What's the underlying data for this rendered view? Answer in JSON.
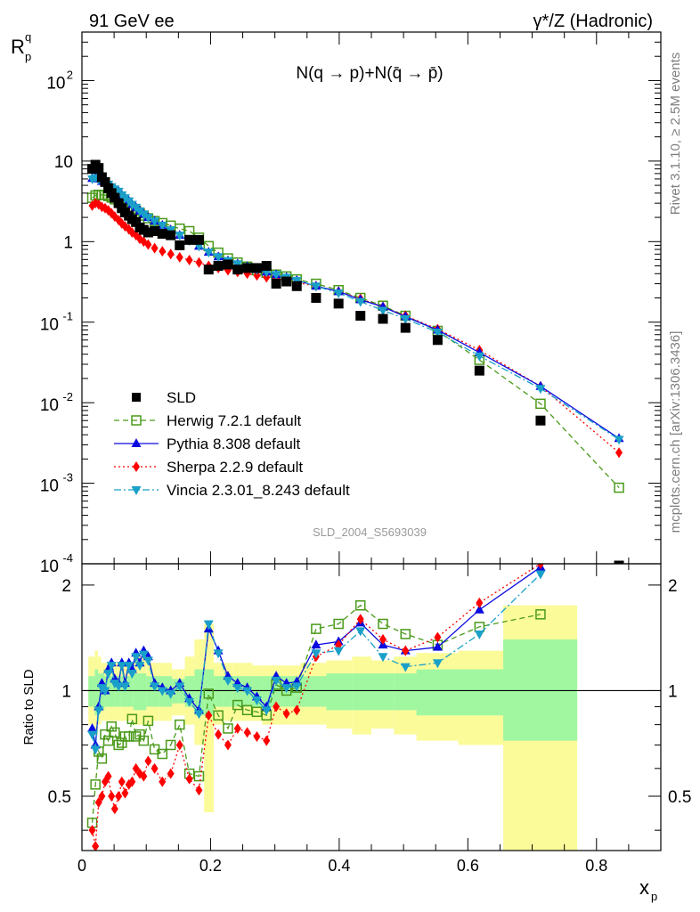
{
  "header": {
    "left": "91 GeV ee",
    "right": "γ*/Z (Hadronic)"
  },
  "side": {
    "rivet": "Rivet 3.1.10, ≥ 2.5M events",
    "mcplots": "mcplots.cern.ch [arXiv:1306.3436]"
  },
  "chart_data": {
    "type": "scatter",
    "title": "N(q → p)+N(q̄ → p̄)",
    "analysis_label": "SLD_2004_S5693039",
    "ylabel": "R_p^q",
    "ylabel_main": "R",
    "ylabel_sub": "p",
    "ylabel_sup": "q",
    "xlabel": "x_p",
    "xlabel_main": "x",
    "xlabel_sub": "p",
    "ratio_ylabel": "Ratio to SLD",
    "xlim": [
      0,
      0.9
    ],
    "ylim": [
      0.0001,
      400
    ],
    "yscale": "log",
    "ratio_ylim": [
      0.35,
      2.3
    ],
    "x_ticks": [
      "0",
      "0.2",
      "0.4",
      "0.6",
      "0.8"
    ],
    "y_ticks": [
      "10^-4",
      "10^-3",
      "10^-2",
      "10^-1",
      "1",
      "10",
      "10^2"
    ],
    "ratio_ticks": [
      "0.5",
      "1",
      "2"
    ],
    "legend_position": "lower-left",
    "colors": {
      "data": "#000000",
      "herwig": "#4a9a1a",
      "pythia": "#0a0ae0",
      "sherpa": "#ff0000",
      "vincia": "#1aa0c8",
      "band_inner": "#a0f7a0",
      "band_outer": "#fbfb9a"
    },
    "x": [
      0.016,
      0.021,
      0.026,
      0.031,
      0.036,
      0.041,
      0.046,
      0.051,
      0.057,
      0.062,
      0.067,
      0.073,
      0.078,
      0.084,
      0.09,
      0.096,
      0.103,
      0.113,
      0.125,
      0.138,
      0.152,
      0.167,
      0.182,
      0.197,
      0.212,
      0.227,
      0.242,
      0.257,
      0.272,
      0.287,
      0.302,
      0.318,
      0.334,
      0.364,
      0.399,
      0.433,
      0.468,
      0.503,
      0.553,
      0.618,
      0.713,
      0.835
    ],
    "series": [
      {
        "name": "SLD",
        "marker": "square",
        "values": [
          8.0,
          9.0,
          8.2,
          6.3,
          5.5,
          4.6,
          4.0,
          3.5,
          3.0,
          2.6,
          2.3,
          2.1,
          1.9,
          1.75,
          1.5,
          1.4,
          1.3,
          1.35,
          1.25,
          1.2,
          0.9,
          1.05,
          1.05,
          0.45,
          0.5,
          0.52,
          0.45,
          0.47,
          0.47,
          0.5,
          0.3,
          0.32,
          0.28,
          0.2,
          0.17,
          0.12,
          0.11,
          0.085,
          0.06,
          0.025,
          0.006,
          9.5e-05
        ]
      },
      {
        "name": "Herwig 7.2.1 default",
        "marker": "open-square",
        "dash": "dashed",
        "values": [
          3.5,
          3.75,
          3.82,
          3.8,
          3.78,
          3.68,
          3.52,
          3.35,
          3.2,
          3.0,
          2.85,
          2.7,
          2.55,
          2.42,
          2.25,
          2.1,
          1.95,
          1.8,
          1.7,
          1.58,
          1.45,
          1.35,
          1.12,
          0.88,
          0.73,
          0.62,
          0.55,
          0.49,
          0.44,
          0.41,
          0.39,
          0.37,
          0.34,
          0.3,
          0.25,
          0.2,
          0.16,
          0.12,
          0.078,
          0.034,
          0.0097,
          0.00088
        ]
      },
      {
        "name": "Pythia 8.308 default",
        "marker": "triangle-up",
        "dash": "solid",
        "values": [
          6.1,
          6.3,
          6.0,
          5.6,
          5.4,
          5.15,
          4.8,
          4.5,
          4.2,
          3.8,
          3.5,
          3.2,
          2.9,
          2.66,
          2.4,
          2.2,
          2.0,
          1.8,
          1.6,
          1.4,
          1.2,
          1.03,
          0.88,
          0.74,
          0.65,
          0.58,
          0.53,
          0.49,
          0.45,
          0.42,
          0.39,
          0.36,
          0.33,
          0.28,
          0.24,
          0.19,
          0.155,
          0.117,
          0.08,
          0.042,
          0.016,
          0.0036
        ]
      },
      {
        "name": "Sherpa 2.2.9 default",
        "marker": "diamond",
        "dash": "dotted",
        "values": [
          2.8,
          3.0,
          2.9,
          2.7,
          2.6,
          2.45,
          2.25,
          2.05,
          1.85,
          1.68,
          1.55,
          1.42,
          1.3,
          1.2,
          1.08,
          1.0,
          0.92,
          0.83,
          0.76,
          0.7,
          0.64,
          0.59,
          0.55,
          0.5,
          0.47,
          0.44,
          0.42,
          0.4,
          0.38,
          0.36,
          0.35,
          0.33,
          0.31,
          0.28,
          0.24,
          0.195,
          0.155,
          0.12,
          0.082,
          0.045,
          0.016,
          0.0024
        ]
      },
      {
        "name": "Vincia 2.3.01_8.243 default",
        "marker": "triangle-down",
        "dash": "dashdot",
        "values": [
          6.0,
          6.2,
          5.9,
          5.6,
          5.4,
          5.15,
          4.8,
          4.5,
          4.2,
          3.8,
          3.5,
          3.2,
          2.9,
          2.66,
          2.4,
          2.2,
          2.0,
          1.8,
          1.6,
          1.4,
          1.2,
          1.03,
          0.88,
          0.74,
          0.65,
          0.58,
          0.53,
          0.49,
          0.45,
          0.42,
          0.39,
          0.36,
          0.33,
          0.28,
          0.23,
          0.18,
          0.14,
          0.11,
          0.075,
          0.038,
          0.015,
          0.0035
        ]
      }
    ],
    "ratio": {
      "x": [
        0.016,
        0.021,
        0.026,
        0.031,
        0.036,
        0.041,
        0.046,
        0.051,
        0.057,
        0.062,
        0.067,
        0.073,
        0.078,
        0.084,
        0.09,
        0.096,
        0.103,
        0.113,
        0.125,
        0.138,
        0.152,
        0.167,
        0.182,
        0.197,
        0.212,
        0.227,
        0.242,
        0.257,
        0.272,
        0.287,
        0.302,
        0.318,
        0.334,
        0.364,
        0.399,
        0.433,
        0.468,
        0.503,
        0.553,
        0.618,
        0.713
      ],
      "series": [
        {
          "name": "Herwig 7.2.1 default",
          "values": [
            0.42,
            0.54,
            0.67,
            0.64,
            0.75,
            0.72,
            0.79,
            0.76,
            0.7,
            0.71,
            0.74,
            0.74,
            0.83,
            0.74,
            0.75,
            0.72,
            0.82,
            0.68,
            0.66,
            0.7,
            0.8,
            0.58,
            0.57,
            0.98,
            0.85,
            0.78,
            0.91,
            0.88,
            0.87,
            0.85,
            1.04,
            1.0,
            1.02,
            1.5,
            1.55,
            1.75,
            1.55,
            1.45,
            1.35,
            1.52,
            1.65
          ]
        },
        {
          "name": "Pythia 8.308 default",
          "values": [
            0.78,
            0.7,
            0.9,
            1.05,
            1.0,
            1.15,
            1.2,
            1.08,
            1.05,
            1.2,
            1.05,
            1.2,
            1.15,
            1.28,
            1.2,
            1.3,
            1.25,
            1.05,
            1.02,
            1.0,
            1.05,
            0.95,
            0.88,
            1.5,
            1.3,
            1.1,
            1.05,
            1.02,
            0.96,
            0.9,
            1.1,
            1.05,
            1.06,
            1.35,
            1.38,
            1.56,
            1.35,
            1.3,
            1.33,
            1.7,
            2.25
          ]
        },
        {
          "name": "Sherpa 2.2.9 default",
          "values": [
            0.4,
            0.36,
            0.48,
            0.5,
            0.55,
            0.57,
            0.5,
            0.46,
            0.5,
            0.55,
            0.51,
            0.54,
            0.55,
            0.6,
            0.58,
            0.57,
            0.63,
            0.6,
            0.55,
            0.58,
            0.7,
            0.56,
            0.52,
            0.85,
            0.75,
            0.7,
            0.78,
            0.76,
            0.74,
            0.72,
            0.9,
            0.86,
            0.88,
            1.25,
            1.35,
            1.6,
            1.4,
            1.3,
            1.42,
            1.78,
            2.3
          ]
        },
        {
          "name": "Vincia 2.3.01_8.243 default",
          "values": [
            0.75,
            0.68,
            0.88,
            1.02,
            1.0,
            1.12,
            1.18,
            1.05,
            1.03,
            1.18,
            1.03,
            1.18,
            1.12,
            1.25,
            1.18,
            1.27,
            1.22,
            1.03,
            1.0,
            0.98,
            1.03,
            0.93,
            0.86,
            1.55,
            1.28,
            1.07,
            1.02,
            1.0,
            0.94,
            0.88,
            1.07,
            1.02,
            1.03,
            1.28,
            1.3,
            1.48,
            1.25,
            1.17,
            1.2,
            1.45,
            2.15
          ]
        }
      ],
      "band_edges": [
        0.01,
        0.02,
        0.025,
        0.03,
        0.035,
        0.04,
        0.045,
        0.05,
        0.06,
        0.07,
        0.08,
        0.09,
        0.1,
        0.11,
        0.12,
        0.13,
        0.14,
        0.15,
        0.16,
        0.175,
        0.19,
        0.205,
        0.22,
        0.235,
        0.25,
        0.265,
        0.28,
        0.295,
        0.31,
        0.325,
        0.34,
        0.38,
        0.42,
        0.45,
        0.485,
        0.52,
        0.585,
        0.655,
        0.77
      ],
      "inner_lo": [
        0.9,
        0.85,
        0.88,
        0.88,
        0.9,
        0.9,
        0.9,
        0.9,
        0.9,
        0.9,
        0.88,
        0.88,
        0.9,
        0.9,
        0.9,
        0.9,
        0.92,
        0.92,
        0.9,
        0.85,
        0.85,
        0.9,
        0.9,
        0.9,
        0.9,
        0.9,
        0.9,
        0.9,
        0.9,
        0.9,
        0.9,
        0.88,
        0.88,
        0.88,
        0.88,
        0.85,
        0.85,
        0.72
      ],
      "inner_hi": [
        1.1,
        1.15,
        1.12,
        1.12,
        1.1,
        1.1,
        1.1,
        1.1,
        1.1,
        1.1,
        1.12,
        1.12,
        1.1,
        1.1,
        1.1,
        1.1,
        1.08,
        1.08,
        1.1,
        1.15,
        1.15,
        1.1,
        1.1,
        1.1,
        1.1,
        1.1,
        1.1,
        1.1,
        1.1,
        1.1,
        1.1,
        1.12,
        1.12,
        1.12,
        1.12,
        1.15,
        1.15,
        1.4
      ],
      "outer_lo": [
        0.8,
        0.75,
        0.8,
        0.82,
        0.82,
        0.82,
        0.82,
        0.82,
        0.82,
        0.82,
        0.8,
        0.8,
        0.8,
        0.82,
        0.82,
        0.82,
        0.85,
        0.85,
        0.8,
        0.7,
        0.45,
        0.8,
        0.82,
        0.82,
        0.82,
        0.82,
        0.8,
        0.8,
        0.8,
        0.8,
        0.8,
        0.78,
        0.75,
        0.78,
        0.75,
        0.72,
        0.7,
        0.35
      ],
      "outer_hi": [
        1.25,
        1.3,
        1.25,
        1.2,
        1.2,
        1.2,
        1.2,
        1.2,
        1.2,
        1.2,
        1.25,
        1.25,
        1.2,
        1.2,
        1.2,
        1.2,
        1.15,
        1.15,
        1.25,
        1.4,
        1.55,
        1.2,
        1.2,
        1.2,
        1.2,
        1.18,
        1.18,
        1.18,
        1.18,
        1.18,
        1.2,
        1.22,
        1.25,
        1.22,
        1.25,
        1.28,
        1.3,
        1.75
      ]
    }
  }
}
